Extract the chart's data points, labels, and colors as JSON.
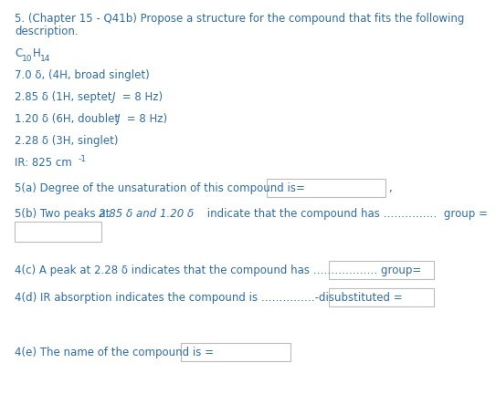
{
  "title_line1": "5. (Chapter 15 - Q41b) Propose a structure for the compound that fits the following",
  "title_line2": "description.",
  "nmr1": "7.0 δ, (4H, broad singlet)",
  "nmr2_pre": "2.85 δ (1H, septet ",
  "nmr2_J": "J",
  "nmr2_post": " = 8 Hz)",
  "nmr3_pre": "1.20 δ (6H, doublet ",
  "nmr3_J": "J",
  "nmr3_post": " = 8 Hz)",
  "nmr4": "2.28 δ (3H, singlet)",
  "ir_pre": "IR: 825 cm",
  "ir_sup": "-1",
  "q5a": "5(a) Degree of the unsaturation of this compound is=",
  "q5b_pre": "5(b) Two peaks at ",
  "q5b_italic": "2.85 δ and 1.20 δ",
  "q5b_post": " indicate that the compound has ……………  group =",
  "q4c": "4(c) A peak at 2.28 δ indicates that the compound has ……………… group=",
  "q4d": "4(d) IR absorption indicates the compound is ……………-disubstituted =",
  "q4e": "4(e) The name of the compound is =",
  "text_color": "#2E6DA4",
  "box_color": "#BBBBBB",
  "bg_color": "#FFFFFF",
  "fs_title": 8.5,
  "fs_body": 8.5,
  "fs_sub": 6.5
}
